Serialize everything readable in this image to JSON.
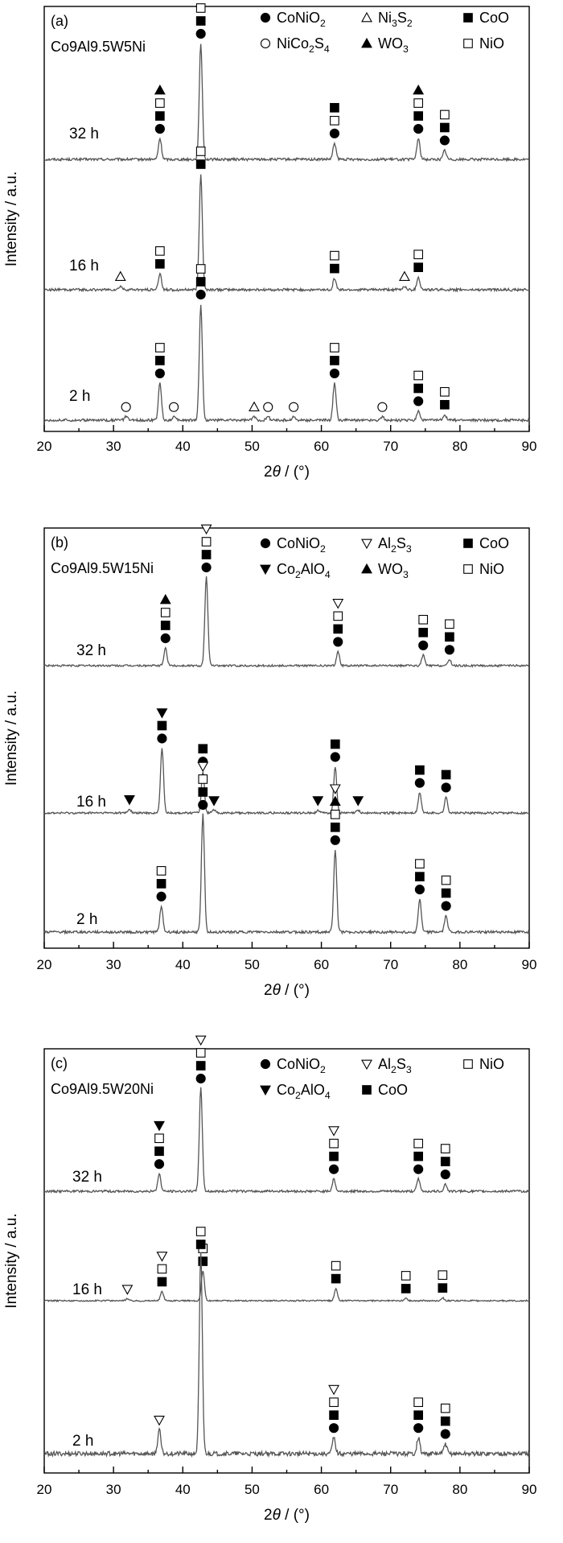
{
  "chart_data": [
    {
      "type": "line",
      "panel_label": "(a)",
      "sample": "Co9Al9.5W5Ni",
      "xlabel_prefix": "2",
      "xlabel_theta": "θ",
      "xlabel_suffix": " / (°)",
      "ylabel": "Intensity / a.u.",
      "xlim": [
        20,
        90
      ],
      "xticks": [
        20,
        30,
        40,
        50,
        60,
        70,
        80,
        90
      ],
      "legend": [
        {
          "marker": "filled-circle",
          "label": "CoNiO",
          "sub": "2",
          "row": 0,
          "col": 0
        },
        {
          "marker": "open-triangle-up",
          "label": "Ni",
          "sub": "3",
          "label2": "S",
          "sub2": "2",
          "row": 0,
          "col": 1
        },
        {
          "marker": "filled-square",
          "label": "CoO",
          "row": 0,
          "col": 2
        },
        {
          "marker": "open-circle",
          "label": "NiCo",
          "sub": "2",
          "label2": "S",
          "sub2": "4",
          "row": 1,
          "col": 0
        },
        {
          "marker": "filled-triangle-up",
          "label": "WO",
          "sub": "3",
          "row": 1,
          "col": 1
        },
        {
          "marker": "open-square",
          "label": "NiO",
          "row": 1,
          "col": 2
        }
      ],
      "series": [
        {
          "name": "32 h",
          "peaks": [
            [
              36.7,
              0.18
            ],
            [
              42.6,
              1.0
            ],
            [
              61.9,
              0.14
            ],
            [
              74.0,
              0.18
            ],
            [
              77.8,
              0.08
            ]
          ],
          "markers": [
            {
              "x": 36.7,
              "stack": [
                "filled-circle",
                "filled-square",
                "open-square",
                "filled-triangle-up"
              ]
            },
            {
              "x": 42.6,
              "stack": [
                "filled-circle",
                "filled-square",
                "open-square"
              ]
            },
            {
              "x": 61.9,
              "stack": [
                "filled-circle",
                "open-square",
                "filled-square"
              ]
            },
            {
              "x": 74.0,
              "stack": [
                "filled-circle",
                "filled-square",
                "open-square",
                "filled-triangle-up"
              ]
            },
            {
              "x": 77.8,
              "stack": [
                "filled-circle",
                "filled-square",
                "open-square"
              ]
            }
          ]
        },
        {
          "name": "16 h",
          "peaks": [
            [
              31.0,
              0.03
            ],
            [
              36.7,
              0.14
            ],
            [
              42.6,
              1.0
            ],
            [
              61.9,
              0.1
            ],
            [
              72.0,
              0.03
            ],
            [
              74.0,
              0.11
            ]
          ],
          "markers": [
            {
              "x": 31.0,
              "stack": [
                "open-triangle-up"
              ]
            },
            {
              "x": 36.7,
              "stack": [
                "filled-square",
                "open-square"
              ]
            },
            {
              "x": 42.6,
              "stack": [
                "filled-square",
                "open-square"
              ]
            },
            {
              "x": 61.9,
              "stack": [
                "filled-square",
                "open-square"
              ]
            },
            {
              "x": 72.0,
              "stack": [
                "open-triangle-up"
              ]
            },
            {
              "x": 74.0,
              "stack": [
                "filled-square",
                "open-square"
              ]
            }
          ]
        },
        {
          "name": "2 h",
          "peaks": [
            [
              31.8,
              0.03
            ],
            [
              36.7,
              0.32
            ],
            [
              38.7,
              0.03
            ],
            [
              42.6,
              1.0
            ],
            [
              50.3,
              0.03
            ],
            [
              52.3,
              0.03
            ],
            [
              56.0,
              0.03
            ],
            [
              61.9,
              0.32
            ],
            [
              68.8,
              0.03
            ],
            [
              74.0,
              0.08
            ],
            [
              77.8,
              0.05
            ]
          ],
          "markers": [
            {
              "x": 31.8,
              "stack": [
                "open-circle"
              ]
            },
            {
              "x": 36.7,
              "stack": [
                "filled-circle",
                "filled-square",
                "open-square"
              ]
            },
            {
              "x": 38.7,
              "stack": [
                "open-circle"
              ]
            },
            {
              "x": 42.6,
              "stack": [
                "filled-circle",
                "filled-square",
                "open-square"
              ]
            },
            {
              "x": 50.3,
              "stack": [
                "open-triangle-up"
              ]
            },
            {
              "x": 52.3,
              "stack": [
                "open-circle"
              ]
            },
            {
              "x": 56.0,
              "stack": [
                "open-circle"
              ]
            },
            {
              "x": 61.9,
              "stack": [
                "filled-circle",
                "filled-square",
                "open-square"
              ]
            },
            {
              "x": 68.8,
              "stack": [
                "open-circle"
              ]
            },
            {
              "x": 74.0,
              "stack": [
                "filled-circle",
                "filled-square",
                "open-square"
              ]
            },
            {
              "x": 77.8,
              "stack": [
                "filled-square",
                "open-square"
              ]
            }
          ]
        }
      ]
    },
    {
      "type": "line",
      "panel_label": "(b)",
      "sample": "Co9Al9.5W15Ni",
      "xlabel_prefix": "2",
      "xlabel_theta": "θ",
      "xlabel_suffix": " / (°)",
      "ylabel": "Intensity / a.u.",
      "xlim": [
        20,
        90
      ],
      "xticks": [
        20,
        30,
        40,
        50,
        60,
        70,
        80,
        90
      ],
      "legend": [
        {
          "marker": "filled-circle",
          "label": "CoNiO",
          "sub": "2",
          "row": 0,
          "col": 0
        },
        {
          "marker": "open-triangle-down",
          "label": "Al",
          "sub": "2",
          "label2": "S",
          "sub2": "3",
          "row": 0,
          "col": 1
        },
        {
          "marker": "filled-square",
          "label": "CoO",
          "row": 0,
          "col": 2
        },
        {
          "marker": "filled-triangle-down",
          "label": "Co",
          "sub": "2",
          "label2": "AlO",
          "sub2": "4",
          "row": 1,
          "col": 0
        },
        {
          "marker": "filled-triangle-up",
          "label": "WO",
          "sub": "3",
          "row": 1,
          "col": 1
        },
        {
          "marker": "open-square",
          "label": "NiO",
          "row": 1,
          "col": 2
        }
      ],
      "series": [
        {
          "name": "32 h",
          "peaks": [
            [
              37.5,
              0.2
            ],
            [
              43.4,
              1.0
            ],
            [
              62.4,
              0.16
            ],
            [
              74.7,
              0.12
            ],
            [
              78.5,
              0.07
            ]
          ],
          "markers": [
            {
              "x": 37.5,
              "stack": [
                "filled-circle",
                "filled-square",
                "open-square",
                "filled-triangle-up"
              ]
            },
            {
              "x": 43.4,
              "stack": [
                "filled-circle",
                "filled-square",
                "open-square",
                "open-triangle-down"
              ]
            },
            {
              "x": 62.4,
              "stack": [
                "filled-circle",
                "filled-square",
                "open-square",
                "open-triangle-down"
              ]
            },
            {
              "x": 74.7,
              "stack": [
                "filled-circle",
                "filled-square",
                "open-square"
              ]
            },
            {
              "x": 78.5,
              "stack": [
                "filled-circle",
                "filled-square",
                "open-square"
              ]
            }
          ]
        },
        {
          "name": "16 h",
          "peaks": [
            [
              32.3,
              0.04
            ],
            [
              37.0,
              0.7
            ],
            [
              42.9,
              0.45
            ],
            [
              44.5,
              0.03
            ],
            [
              59.5,
              0.03
            ],
            [
              62.0,
              0.5
            ],
            [
              65.3,
              0.03
            ],
            [
              74.2,
              0.22
            ],
            [
              78.0,
              0.17
            ]
          ],
          "markers": [
            {
              "x": 32.3,
              "stack": [
                "filled-triangle-down"
              ]
            },
            {
              "x": 37.0,
              "stack": [
                "filled-circle",
                "filled-square",
                "filled-triangle-down"
              ]
            },
            {
              "x": 42.9,
              "stack": [
                "filled-circle",
                "filled-square"
              ]
            },
            {
              "x": 44.5,
              "stack": [
                "filled-triangle-down"
              ]
            },
            {
              "x": 59.5,
              "stack": [
                "filled-triangle-down"
              ]
            },
            {
              "x": 62.0,
              "stack": [
                "filled-circle",
                "filled-square"
              ]
            },
            {
              "x": 65.3,
              "stack": [
                "filled-triangle-down"
              ]
            },
            {
              "x": 74.2,
              "stack": [
                "filled-circle",
                "filled-square"
              ]
            },
            {
              "x": 78.0,
              "stack": [
                "filled-circle",
                "filled-square"
              ]
            }
          ]
        },
        {
          "name": "2 h",
          "peaks": [
            [
              36.9,
              0.22
            ],
            [
              42.9,
              1.0
            ],
            [
              62.0,
              0.7
            ],
            [
              74.2,
              0.28
            ],
            [
              78.0,
              0.14
            ]
          ],
          "markers": [
            {
              "x": 36.9,
              "stack": [
                "filled-circle",
                "filled-square",
                "open-square"
              ]
            },
            {
              "x": 42.9,
              "stack": [
                "filled-circle",
                "filled-square",
                "open-square",
                "open-triangle-down"
              ]
            },
            {
              "x": 62.0,
              "stack": [
                "filled-circle",
                "filled-square",
                "open-square",
                "filled-triangle-up",
                "open-triangle-down"
              ]
            },
            {
              "x": 74.2,
              "stack": [
                "filled-circle",
                "filled-square",
                "open-square"
              ]
            },
            {
              "x": 78.0,
              "stack": [
                "filled-circle",
                "filled-square",
                "open-square"
              ]
            }
          ]
        }
      ]
    },
    {
      "type": "line",
      "panel_label": "(c)",
      "sample": "Co9Al9.5W20Ni",
      "xlabel_prefix": "2",
      "xlabel_theta": "θ",
      "xlabel_suffix": " / (°)",
      "ylabel": "Intensity / a.u.",
      "xlim": [
        20,
        90
      ],
      "xticks": [
        20,
        30,
        40,
        50,
        60,
        70,
        80,
        90
      ],
      "legend": [
        {
          "marker": "filled-circle",
          "label": "CoNiO",
          "sub": "2",
          "row": 0,
          "col": 0
        },
        {
          "marker": "open-triangle-down",
          "label": "Al",
          "sub": "2",
          "label2": "S",
          "sub2": "3",
          "row": 0,
          "col": 1
        },
        {
          "marker": "open-square",
          "label": "NiO",
          "row": 0,
          "col": 2
        },
        {
          "marker": "filled-triangle-down",
          "label": "Co",
          "sub": "2",
          "label2": "AlO",
          "sub2": "4",
          "row": 1,
          "col": 0
        },
        {
          "marker": "filled-square",
          "label": "CoO",
          "row": 1,
          "col": 1
        }
      ],
      "series": [
        {
          "name": "32 h",
          "peaks": [
            [
              36.6,
              0.17
            ],
            [
              42.6,
              1.0
            ],
            [
              61.8,
              0.12
            ],
            [
              74.0,
              0.12
            ],
            [
              77.9,
              0.07
            ]
          ],
          "markers": [
            {
              "x": 36.6,
              "stack": [
                "filled-circle",
                "filled-square",
                "open-square",
                "filled-triangle-down"
              ]
            },
            {
              "x": 42.6,
              "stack": [
                "filled-circle",
                "filled-square",
                "open-square",
                "open-triangle-down"
              ]
            },
            {
              "x": 61.8,
              "stack": [
                "filled-circle",
                "filled-square",
                "open-square",
                "open-triangle-down"
              ]
            },
            {
              "x": 74.0,
              "stack": [
                "filled-circle",
                "filled-square",
                "open-square"
              ]
            },
            {
              "x": 77.9,
              "stack": [
                "filled-circle",
                "filled-square",
                "open-square"
              ]
            }
          ]
        },
        {
          "name": "16 h",
          "peaks": [
            [
              32.0,
              0.03
            ],
            [
              37.0,
              0.15
            ],
            [
              42.9,
              0.48
            ],
            [
              62.1,
              0.2
            ],
            [
              72.2,
              0.04
            ],
            [
              77.5,
              0.05
            ]
          ],
          "markers": [
            {
              "x": 32.0,
              "stack": [
                "open-triangle-down"
              ]
            },
            {
              "x": 37.0,
              "stack": [
                "filled-square",
                "open-square",
                "open-triangle-down"
              ]
            },
            {
              "x": 42.9,
              "stack": [
                "filled-square",
                "open-square"
              ]
            },
            {
              "x": 62.1,
              "stack": [
                "filled-square",
                "open-square"
              ]
            },
            {
              "x": 72.2,
              "stack": [
                "filled-square",
                "open-square"
              ]
            },
            {
              "x": 77.5,
              "stack": [
                "filled-square",
                "open-square"
              ]
            }
          ]
        },
        {
          "name": "2 h",
          "peaks": [
            [
              36.6,
              0.12
            ],
            [
              42.6,
              1.0
            ],
            [
              61.8,
              0.08
            ],
            [
              74.0,
              0.08
            ],
            [
              77.9,
              0.05
            ]
          ],
          "markers": [
            {
              "x": 36.6,
              "stack": [
                "open-triangle-down"
              ]
            },
            {
              "x": 42.6,
              "stack": [
                "filled-square",
                "open-square"
              ]
            },
            {
              "x": 61.8,
              "stack": [
                "filled-circle",
                "filled-square",
                "open-square",
                "open-triangle-down"
              ]
            },
            {
              "x": 74.0,
              "stack": [
                "filled-circle",
                "filled-square",
                "open-square"
              ]
            },
            {
              "x": 77.9,
              "stack": [
                "filled-circle",
                "filled-square",
                "open-square"
              ]
            }
          ]
        }
      ]
    }
  ]
}
